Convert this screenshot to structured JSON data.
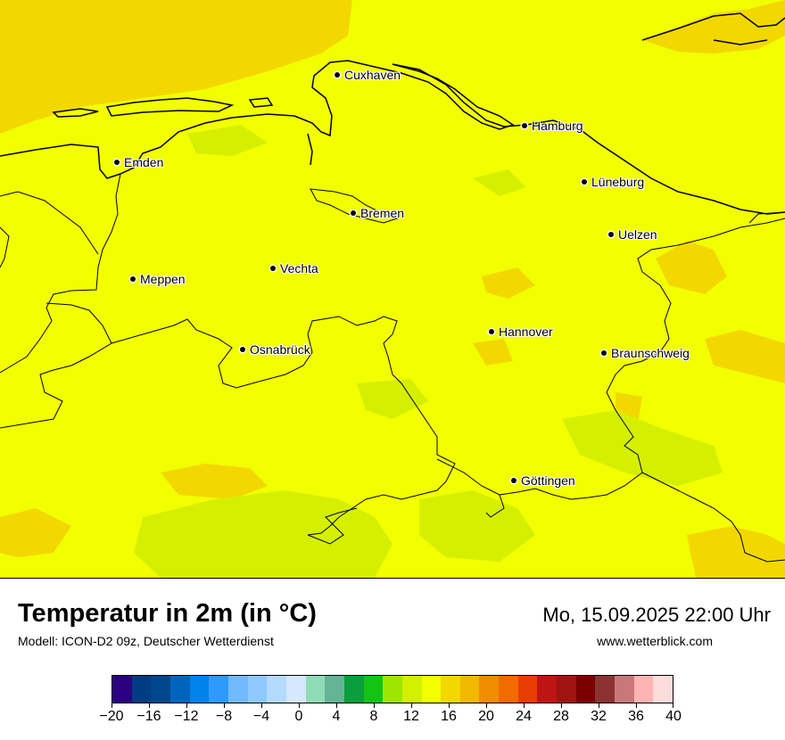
{
  "map": {
    "cities": [
      {
        "name": "Cuxhaven"
      },
      {
        "name": "Hamburg"
      },
      {
        "name": "Emden"
      },
      {
        "name": "Lüneburg"
      },
      {
        "name": "Bremen"
      },
      {
        "name": "Uelzen"
      },
      {
        "name": "Vechta"
      },
      {
        "name": "Meppen"
      },
      {
        "name": "Hannover"
      },
      {
        "name": "Osnabrück"
      },
      {
        "name": "Braunschweig"
      },
      {
        "name": "Göttingen"
      }
    ],
    "colors": {
      "temp_15": "#f2ff00",
      "temp_17": "#f2d800",
      "temp_13": "#d4f000",
      "border": "#000000"
    }
  },
  "footer": {
    "title": "Temperatur in 2m (in °C)",
    "model": "Modell: ICON-D2 09z, Deutscher Wetterdienst",
    "datetime": "Mo, 15.09.2025 22:00 Uhr",
    "website": "www.wetterblick.com"
  },
  "legend": {
    "ticks": [
      "−20",
      "−16",
      "−12",
      "−8",
      "−4",
      "0",
      "4",
      "8",
      "12",
      "16",
      "20",
      "24",
      "28",
      "32",
      "36",
      "40"
    ],
    "colors": [
      "#2c0080",
      "#003c82",
      "#00468c",
      "#0064be",
      "#0082ec",
      "#2c9aff",
      "#72baff",
      "#8ec8ff",
      "#b4daff",
      "#d4e8ff",
      "#90dcb4",
      "#64b496",
      "#0a9e3c",
      "#14c414",
      "#9ee600",
      "#d2f000",
      "#f2ff00",
      "#f2d800",
      "#f2b800",
      "#f28c00",
      "#f26a00",
      "#e83c00",
      "#be1414",
      "#a01414",
      "#7a0000",
      "#8c3232",
      "#c87878",
      "#ffb4b4",
      "#ffdcdc"
    ]
  }
}
